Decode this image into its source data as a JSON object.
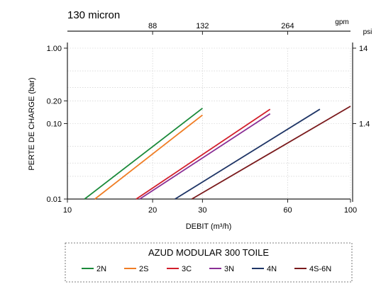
{
  "chart_data": {
    "type": "line",
    "title": "130 micron",
    "title_color": "#c0151c",
    "xlabel": "DEBIT (m³/h)",
    "ylabel": "PERTE DE CHARGE  (bar)",
    "x_scale": "log",
    "y_scale": "log",
    "xlim": [
      10,
      100
    ],
    "ylim": [
      0.01,
      1.0
    ],
    "x_ticks": [
      10,
      20,
      30,
      60,
      100
    ],
    "y_ticks": [
      0.01,
      0.1,
      0.2,
      1.0
    ],
    "y_tick_labels": [
      "0.01",
      "0.10",
      "0.20",
      "1.00"
    ],
    "top_axis": {
      "unit": "gpm",
      "ticks": [
        {
          "label": "88",
          "x": 20
        },
        {
          "label": "132",
          "x": 30
        },
        {
          "label": "264",
          "x": 60
        }
      ]
    },
    "right_axis": {
      "unit": "psi",
      "ticks": [
        {
          "label": "14",
          "y": 1.0
        },
        {
          "label": "1.4",
          "y": 0.1
        }
      ]
    },
    "grid": true,
    "legend": {
      "title": "AZUD MODULAR 300 TOILE",
      "position": "bottom"
    },
    "series": [
      {
        "name": "2N",
        "color": "#1a8a3a",
        "points": [
          [
            11.5,
            0.01
          ],
          [
            30,
            0.16
          ]
        ]
      },
      {
        "name": "2S",
        "color": "#f07d24",
        "points": [
          [
            12.5,
            0.01
          ],
          [
            30,
            0.13
          ]
        ]
      },
      {
        "name": "3C",
        "color": "#d21f2b",
        "points": [
          [
            17.5,
            0.01
          ],
          [
            52,
            0.155
          ]
        ]
      },
      {
        "name": "3N",
        "color": "#8a2f95",
        "points": [
          [
            18,
            0.01
          ],
          [
            52,
            0.135
          ]
        ]
      },
      {
        "name": "4N",
        "color": "#1f3566",
        "points": [
          [
            24,
            0.01
          ],
          [
            78,
            0.155
          ]
        ]
      },
      {
        "name": "4S-6N",
        "color": "#7a1a1c",
        "points": [
          [
            27.5,
            0.01
          ],
          [
            100,
            0.17
          ]
        ]
      }
    ]
  }
}
